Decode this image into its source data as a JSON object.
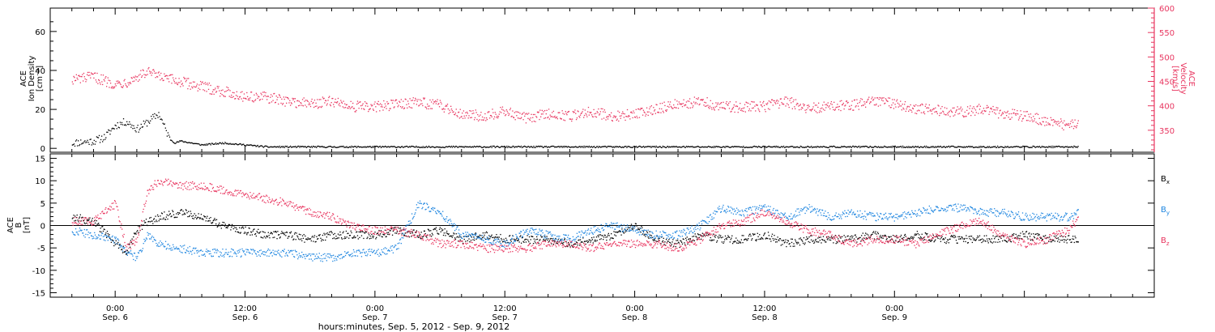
{
  "colors": {
    "density": "#000000",
    "velocity": "#e8355f",
    "bx": "#000000",
    "by": "#1f86e0",
    "bz": "#e8355f",
    "axis": "#000000"
  },
  "chart_data": [
    {
      "type": "scatter",
      "panel": "top",
      "ylabel_left": [
        "ACE",
        "Ion Density",
        "[cm⁻³]"
      ],
      "ylabel_right": [
        "ACE",
        "Velocity",
        "[km/s]"
      ],
      "ylim_left": [
        -2,
        72
      ],
      "yticks_left": [
        0,
        20,
        40,
        60
      ],
      "ylim_right": [
        305,
        600
      ],
      "yticks_right": [
        350,
        400,
        450,
        500,
        550,
        600
      ],
      "series": [
        {
          "axis": "left",
          "color_key": "density",
          "x": [
            -4,
            -2,
            -1,
            0,
            1,
            2,
            3,
            4,
            5,
            5.5,
            6,
            7,
            8,
            10,
            12,
            14,
            15,
            16,
            18,
            24,
            36,
            48,
            60,
            72,
            84,
            89
          ],
          "y": [
            3,
            4,
            6,
            12,
            14,
            10,
            14,
            18,
            5,
            3,
            4,
            3,
            2,
            3,
            2,
            1,
            1,
            1,
            1,
            1,
            1,
            1,
            1,
            1,
            1,
            1
          ]
        },
        {
          "axis": "right",
          "color_key": "velocity",
          "x": [
            -4,
            -2,
            0,
            1,
            2,
            3,
            4,
            6,
            8,
            10,
            12,
            14,
            16,
            18,
            20,
            22,
            24,
            26,
            28,
            30,
            32,
            34,
            36,
            38,
            40,
            42,
            44,
            46,
            48,
            50,
            52,
            54,
            56,
            58,
            60,
            62,
            64,
            66,
            68,
            70,
            72,
            74,
            76,
            78,
            80,
            82,
            84,
            86,
            88,
            89
          ],
          "y": [
            455,
            460,
            445,
            450,
            460,
            470,
            460,
            450,
            440,
            430,
            420,
            418,
            410,
            405,
            410,
            400,
            398,
            405,
            408,
            402,
            385,
            380,
            390,
            375,
            385,
            380,
            390,
            378,
            385,
            395,
            405,
            410,
            400,
            398,
            400,
            410,
            395,
            400,
            402,
            410,
            405,
            395,
            392,
            388,
            395,
            385,
            380,
            370,
            360,
            365
          ]
        }
      ]
    },
    {
      "type": "scatter",
      "panel": "bottom",
      "ylabel": [
        "ACE",
        "B",
        "[nT]"
      ],
      "ylim": [
        -16,
        16
      ],
      "yticks": [
        -15,
        -10,
        -5,
        0,
        5,
        10,
        15
      ],
      "zero_line": true,
      "legend": [
        "Bx",
        "By",
        "Bz"
      ],
      "series": [
        {
          "name": "Bx",
          "color_key": "bx",
          "x": [
            -4,
            -2,
            0,
            1,
            2,
            3,
            4,
            6,
            8,
            10,
            12,
            14,
            16,
            18,
            20,
            22,
            24,
            26,
            28,
            30,
            32,
            34,
            36,
            38,
            40,
            42,
            44,
            46,
            48,
            50,
            52,
            54,
            56,
            58,
            60,
            62,
            64,
            66,
            68,
            70,
            72,
            74,
            76,
            78,
            80,
            82,
            84,
            86,
            88,
            89
          ],
          "y": [
            2,
            1,
            -4,
            -6,
            -1,
            1,
            2,
            3,
            2,
            0,
            -1,
            -2,
            -2,
            -3,
            -2,
            -2,
            -2,
            -1,
            -2,
            -1,
            -3,
            -2,
            -3,
            -3,
            -3,
            -4,
            -3,
            -2,
            0,
            -3,
            -4,
            -2,
            -3,
            -3,
            -2,
            -4,
            -3,
            -3,
            -3,
            -2,
            -3,
            -2,
            -3,
            -3,
            -3,
            -3,
            -2,
            -3,
            -3,
            -3
          ]
        },
        {
          "name": "By",
          "color_key": "by",
          "x": [
            -4,
            -2,
            0,
            1,
            2,
            3,
            4,
            6,
            8,
            10,
            12,
            14,
            16,
            18,
            20,
            22,
            24,
            26,
            28,
            30,
            32,
            34,
            36,
            38,
            40,
            42,
            44,
            46,
            48,
            50,
            52,
            54,
            56,
            58,
            60,
            62,
            64,
            66,
            68,
            70,
            72,
            74,
            76,
            78,
            80,
            82,
            84,
            86,
            88,
            89
          ],
          "y": [
            -1,
            -2,
            -3,
            -6,
            -7,
            -2,
            -4,
            -5,
            -6,
            -6,
            -6,
            -6,
            -6,
            -7,
            -7,
            -6,
            -6,
            -5,
            5,
            3,
            -2,
            -3,
            -4,
            -1,
            -2,
            -3,
            -1,
            0,
            -1,
            -2,
            -2,
            0,
            4,
            3,
            4,
            2,
            4,
            2,
            3,
            2,
            2,
            3,
            4,
            4,
            3,
            3,
            2,
            2,
            2,
            3
          ]
        },
        {
          "name": "Bz",
          "color_key": "bz",
          "x": [
            -4,
            -2,
            0,
            1,
            2,
            3,
            4,
            6,
            8,
            10,
            12,
            14,
            16,
            18,
            20,
            22,
            24,
            26,
            28,
            30,
            32,
            34,
            36,
            38,
            40,
            42,
            44,
            46,
            48,
            50,
            52,
            54,
            56,
            58,
            60,
            62,
            64,
            66,
            68,
            70,
            72,
            74,
            76,
            78,
            80,
            82,
            84,
            86,
            88,
            89
          ],
          "y": [
            1,
            1,
            5,
            -5,
            -3,
            8,
            10,
            9,
            9,
            8,
            7,
            6,
            5,
            3,
            2,
            0,
            -1,
            -1,
            -2,
            -4,
            -4,
            -5,
            -5,
            -5,
            -4,
            -4,
            -5,
            -4,
            -4,
            -4,
            -5,
            -3,
            0,
            1,
            3,
            1,
            -1,
            -2,
            -4,
            -3,
            -3,
            -4,
            -2,
            0,
            1,
            -2,
            -4,
            -3,
            -1,
            2
          ]
        }
      ]
    }
  ],
  "axis": {
    "x_range": [
      -6,
      96
    ],
    "ticks": [
      {
        "x": 0,
        "time": "0:00",
        "day": "Sep. 6"
      },
      {
        "x": 12,
        "time": "12:00",
        "day": "Sep. 6"
      },
      {
        "x": 24,
        "time": "0:00",
        "day": "Sep. 7"
      },
      {
        "x": 36,
        "time": "12:00",
        "day": "Sep. 7"
      },
      {
        "x": 48,
        "time": "0:00",
        "day": "Sep. 8"
      },
      {
        "x": 60,
        "time": "12:00",
        "day": "Sep. 8"
      },
      {
        "x": 72,
        "time": "0:00",
        "day": "Sep. 9"
      }
    ],
    "xlabel": "hours:minutes, Sep.  5, 2012 - Sep.  9, 2012"
  },
  "legend_labels": {
    "bx": {
      "main": "B",
      "sub": "x"
    },
    "by": {
      "main": "B",
      "sub": "y"
    },
    "bz": {
      "main": "B",
      "sub": "z"
    }
  }
}
